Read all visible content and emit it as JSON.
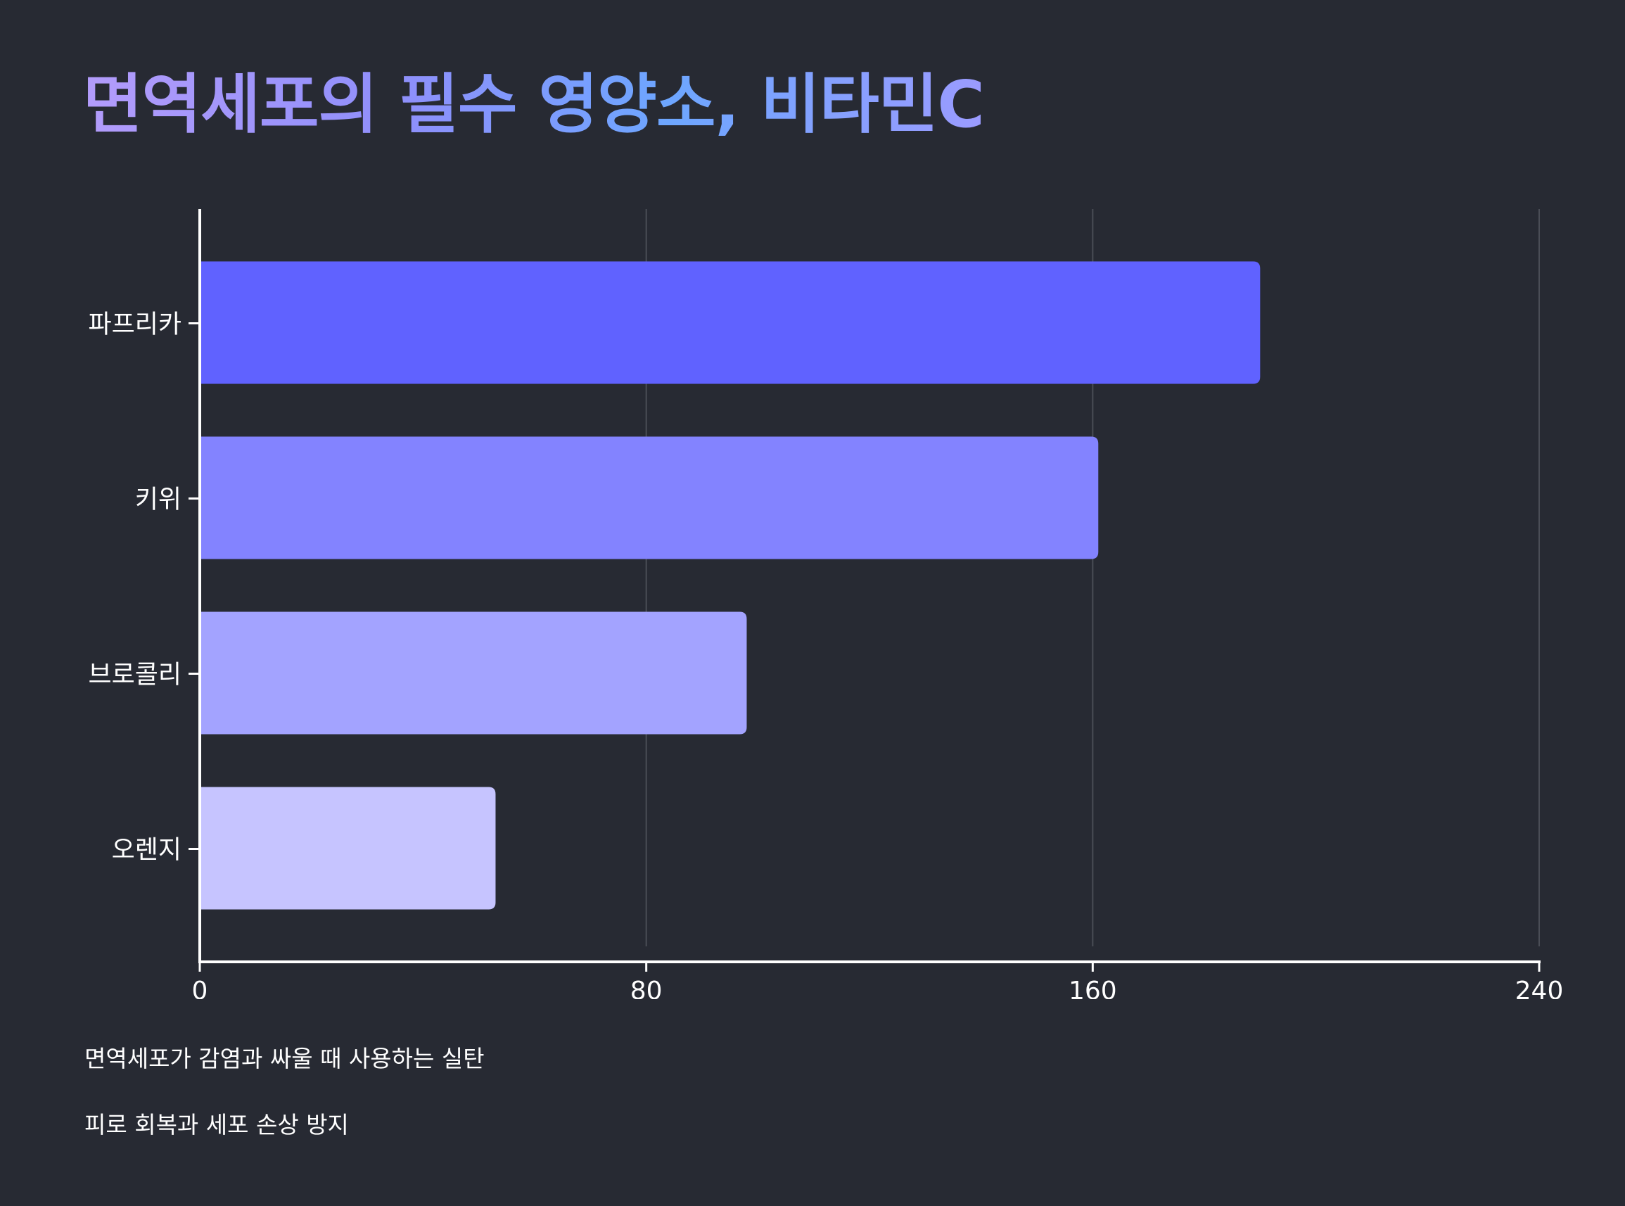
{
  "title": "면역세포의 필수 영양소, 비타민C",
  "notes": [
    "면역세포가 감염과 싸울 때 사용하는 실탄",
    "피로 회복과 세포 손상 방지"
  ],
  "colors": {
    "background": "#272a33",
    "bars": [
      "#6062ff",
      "#8383ff",
      "#a3a3ff",
      "#c6c4ff"
    ],
    "grid": "#4a4d56",
    "axis": "#ffffff"
  },
  "chart_data": {
    "type": "bar",
    "orientation": "horizontal",
    "categories": [
      "파프리카",
      "키위",
      "브로콜리",
      "오렌지"
    ],
    "values": [
      190,
      161,
      98,
      53
    ],
    "xlim": [
      0,
      240
    ],
    "xticks": [
      "0",
      "80",
      "160",
      "240"
    ],
    "grid": true,
    "title": "면역세포의 필수 영양소, 비타민C",
    "xlabel": "",
    "ylabel": ""
  }
}
